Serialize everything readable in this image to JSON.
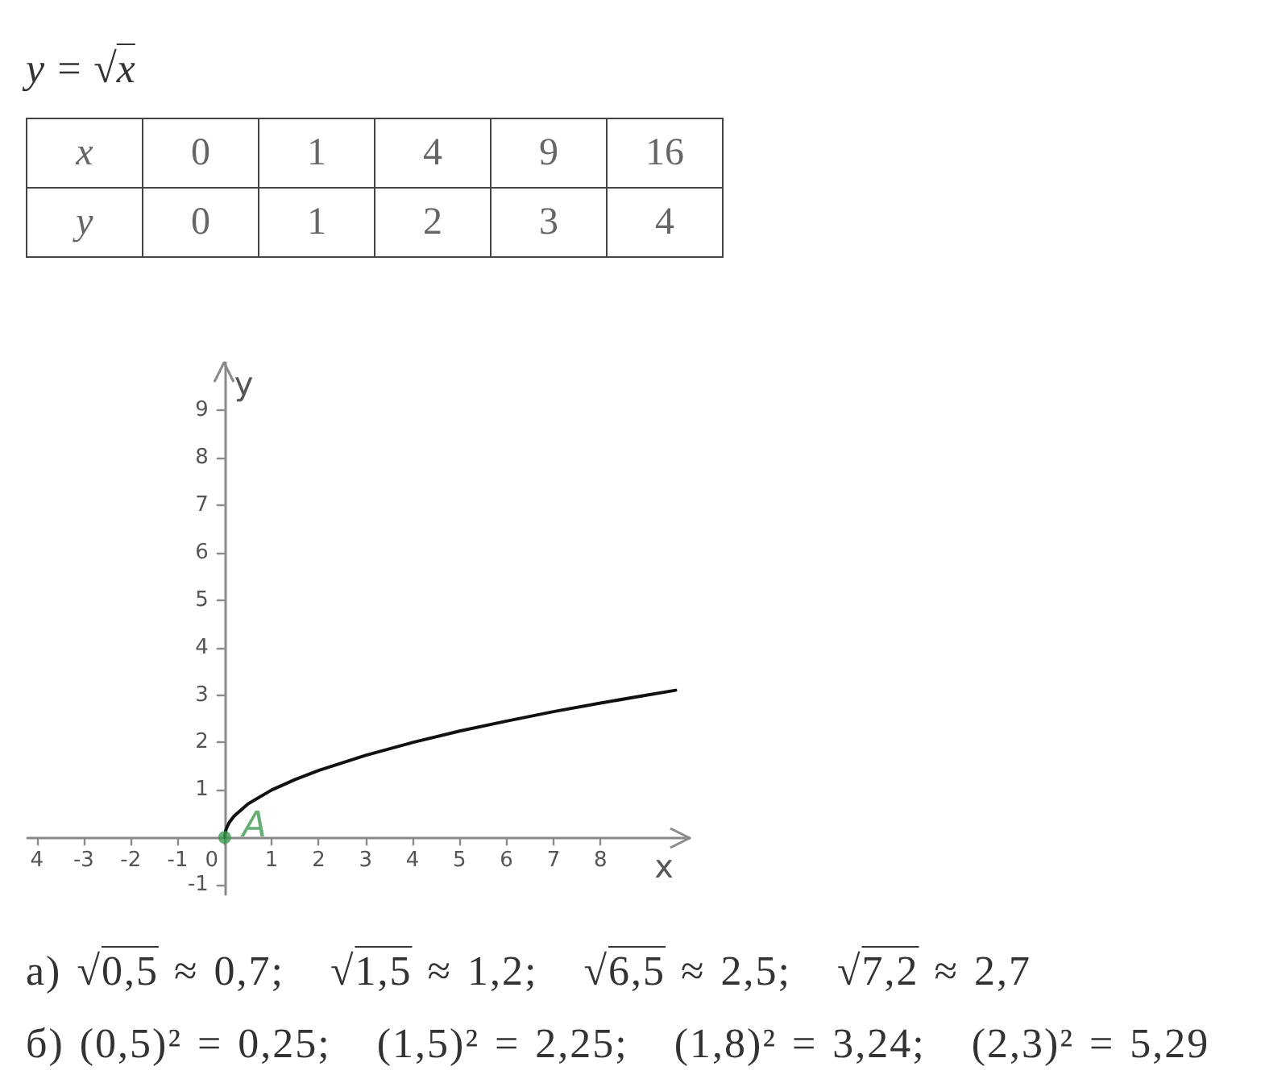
{
  "chart_data": [
    {
      "type": "heatmap",
      "title": "y = √x",
      "xlabel": "x",
      "categories": [
        "0",
        "1",
        "4",
        "9",
        "16"
      ],
      "y_categories": [
        "y"
      ],
      "cells": [
        [
          0,
          1,
          2,
          3,
          4
        ]
      ],
      "data_labels": true
    },
    {
      "type": "line",
      "xlabel": "x",
      "ylabel": "y",
      "xlim": [
        -4.2,
        9.9
      ],
      "ylim": [
        -1.2,
        10
      ],
      "xticks": [
        {
          "value": -4,
          "label": "4"
        },
        -3,
        -2,
        -1,
        0,
        1,
        2,
        3,
        4,
        5,
        6,
        7,
        8
      ],
      "yticks": [
        -1,
        1,
        2,
        3,
        4,
        5,
        6,
        7,
        8,
        9
      ],
      "marker": "none",
      "line_style": "solid",
      "series": [
        {
          "color": "#111111",
          "x": [
            0,
            0.02,
            0.05,
            0.1,
            0.2,
            0.5,
            1,
            1.5,
            2,
            3,
            4,
            5,
            6,
            7,
            8,
            9,
            9.6
          ],
          "values": [
            0,
            0.14,
            0.22,
            0.32,
            0.45,
            0.71,
            1,
            1.22,
            1.41,
            1.73,
            2,
            2.24,
            2.45,
            2.65,
            2.83,
            3,
            3.1
          ]
        },
        {
          "type": "scatter",
          "name": "A",
          "color": "#3c9a50",
          "marker": "circle",
          "x": [
            0
          ],
          "values": [
            0
          ]
        }
      ],
      "annotations": [
        "а) √0,5 ≈ 0,7;   √1,5 ≈ 1,2;   √6,5 ≈ 2,5;   √7,2 ≈ 2,7",
        "б) (0,5)² = 0,25;   (1,5)² = 2,25;   (1,8)² = 3,24;   (2,3)² = 5,29"
      ]
    }
  ]
}
